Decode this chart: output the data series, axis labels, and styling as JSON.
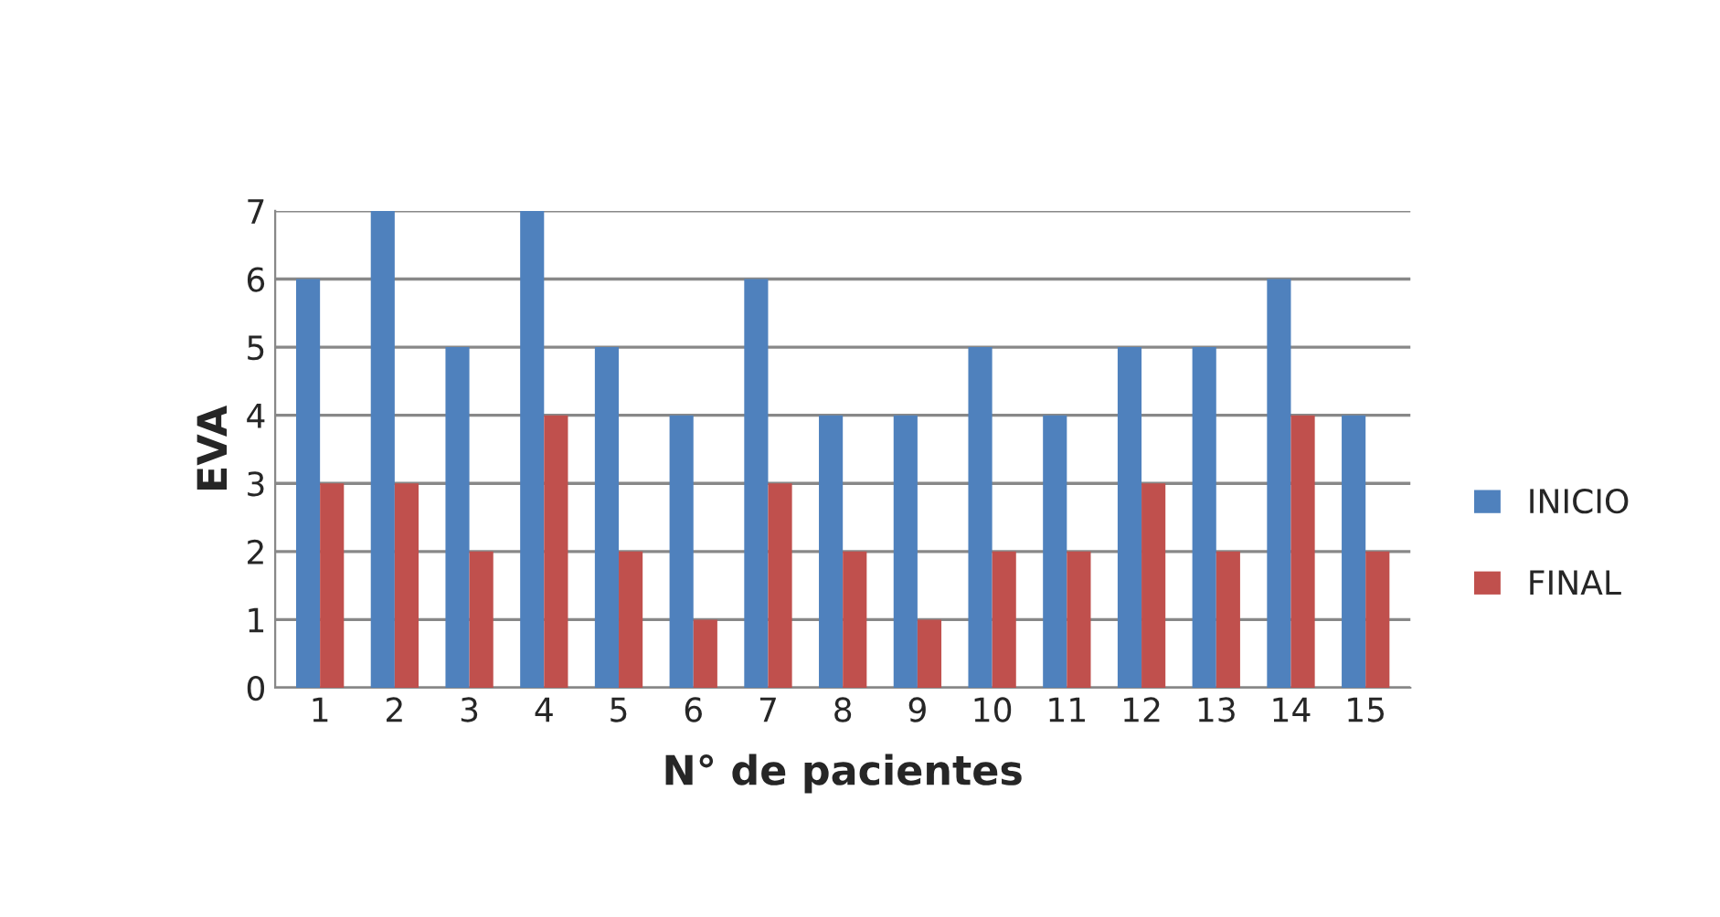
{
  "chart_data": {
    "type": "bar",
    "xlabel": "N° de pacientes",
    "ylabel": "EVA",
    "categories": [
      "1",
      "2",
      "3",
      "4",
      "5",
      "6",
      "7",
      "8",
      "9",
      "10",
      "11",
      "12",
      "13",
      "14",
      "15"
    ],
    "series": [
      {
        "name": "INICIO",
        "color": "#4f81bd",
        "values": [
          6,
          7,
          5,
          7,
          5,
          4,
          6,
          4,
          4,
          5,
          4,
          5,
          5,
          6,
          4
        ]
      },
      {
        "name": "FINAL",
        "color": "#c0504d",
        "values": [
          3,
          3,
          2,
          4,
          2,
          1,
          3,
          2,
          1,
          2,
          2,
          3,
          2,
          4,
          2
        ]
      }
    ],
    "ylim": [
      0,
      7
    ],
    "yticks": [
      0,
      1,
      2,
      3,
      4,
      5,
      6,
      7
    ],
    "grid": "y",
    "legend": "right"
  }
}
